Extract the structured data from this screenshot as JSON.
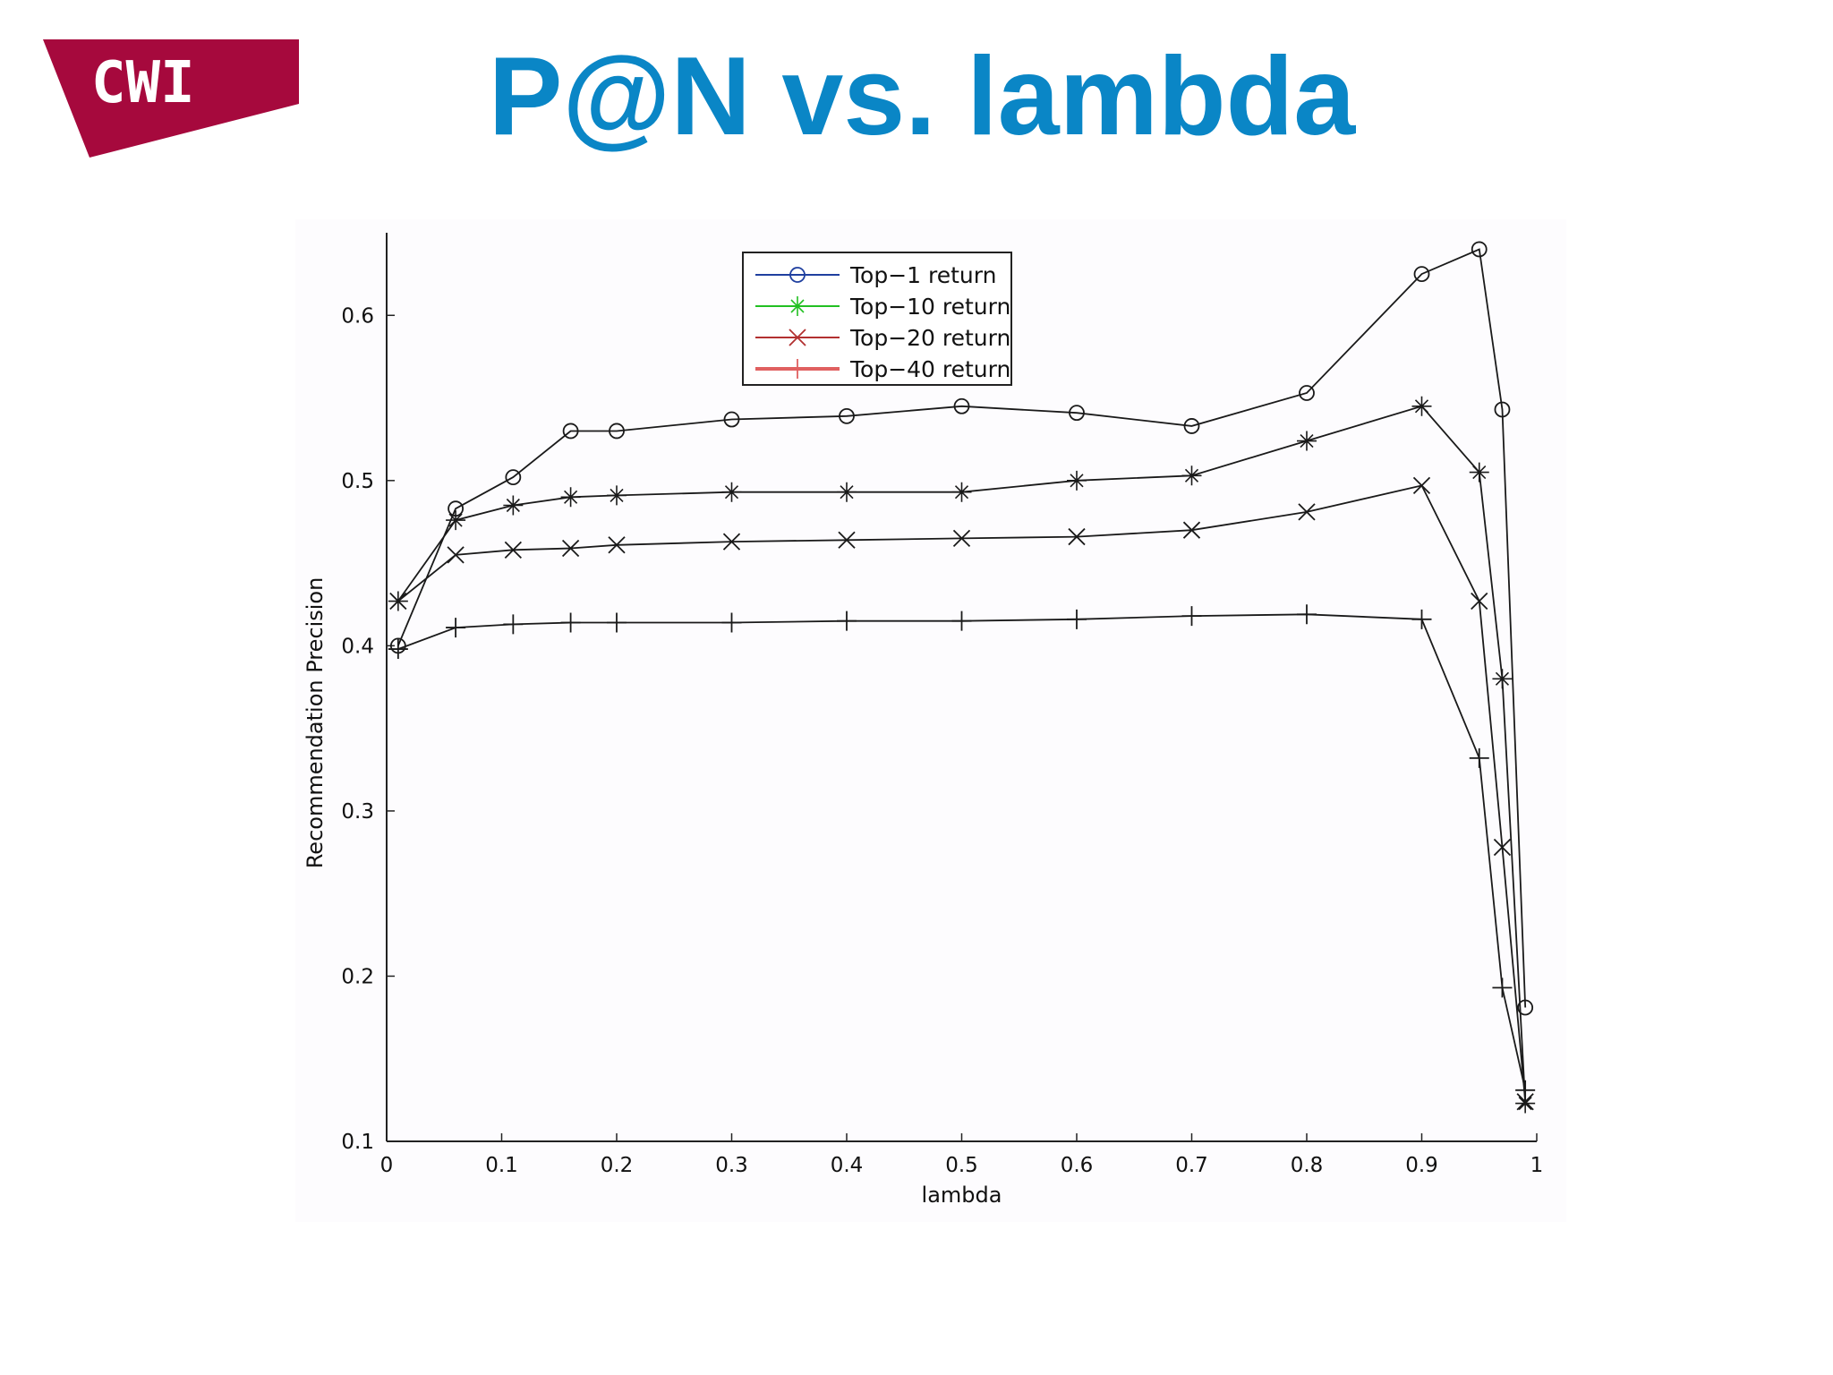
{
  "header": {
    "logo_text": "CWI",
    "title": "P@N vs. lambda",
    "brand_color": "#a6093d",
    "title_color": "#0a86c6"
  },
  "chart_data": {
    "type": "line",
    "xlabel": "lambda",
    "ylabel": "Recommendation Precision",
    "xlim": [
      0,
      1
    ],
    "ylim": [
      0.1,
      0.65
    ],
    "xticks": [
      0,
      0.1,
      0.2,
      0.3,
      0.4,
      0.5,
      0.6,
      0.7,
      0.8,
      0.9,
      1
    ],
    "xtick_labels": [
      "0",
      "0.1",
      "0.2",
      "0.3",
      "0.4",
      "0.5",
      "0.6",
      "0.7",
      "0.8",
      "0.9",
      "1"
    ],
    "yticks": [
      0.1,
      0.2,
      0.3,
      0.4,
      0.5,
      0.6
    ],
    "ytick_labels": [
      "0.1",
      "0.2",
      "0.3",
      "0.4",
      "0.5",
      "0.6"
    ],
    "grid": false,
    "legend_position": "top-center",
    "x": [
      0.01,
      0.06,
      0.11,
      0.16,
      0.2,
      0.3,
      0.4,
      0.5,
      0.6,
      0.7,
      0.8,
      0.9,
      0.95,
      0.97,
      0.99
    ],
    "series": [
      {
        "name": "Top−1 return",
        "marker": "circle",
        "legend_color": "#1f3f9f",
        "values": [
          0.4,
          0.483,
          0.502,
          0.53,
          0.53,
          0.537,
          0.539,
          0.545,
          0.541,
          0.533,
          0.553,
          0.625,
          0.64,
          0.543,
          0.181
        ]
      },
      {
        "name": "Top−10 return",
        "marker": "star",
        "legend_color": "#22c022",
        "values": [
          0.427,
          0.476,
          0.485,
          0.49,
          0.491,
          0.493,
          0.493,
          0.493,
          0.5,
          0.503,
          0.524,
          0.545,
          0.505,
          0.38,
          0.123
        ]
      },
      {
        "name": "Top−20 return",
        "marker": "x",
        "legend_color": "#b23030",
        "values": [
          0.427,
          0.455,
          0.458,
          0.459,
          0.461,
          0.463,
          0.464,
          0.465,
          0.466,
          0.47,
          0.481,
          0.497,
          0.427,
          0.278,
          0.124
        ]
      },
      {
        "name": "Top−40 return",
        "marker": "plus",
        "legend_color": "#e06060",
        "values": [
          0.398,
          0.411,
          0.413,
          0.414,
          0.414,
          0.414,
          0.415,
          0.415,
          0.416,
          0.418,
          0.419,
          0.416,
          0.332,
          0.193,
          0.131
        ]
      }
    ]
  }
}
